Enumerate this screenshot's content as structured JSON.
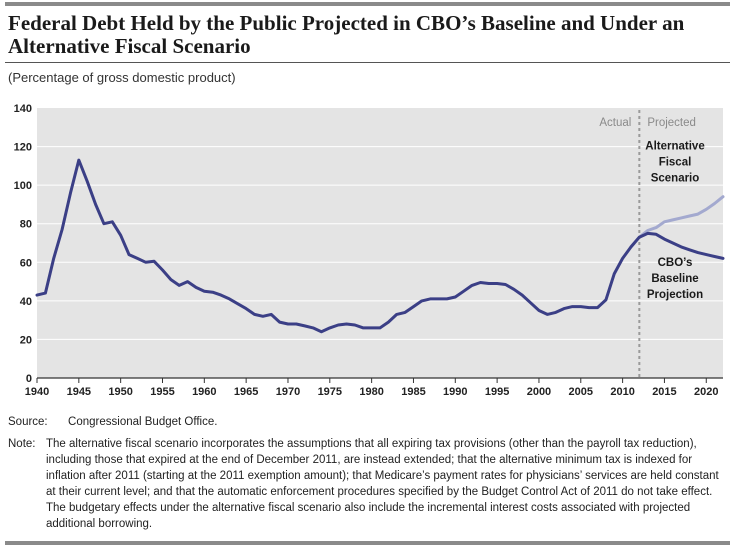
{
  "title": "Federal Debt Held by the Public Projected in CBO’s Baseline and Under an Alternative Fiscal Scenario",
  "subtitle": "(Percentage of gross domestic product)",
  "source_label": "Source:",
  "source_text": "Congressional Budget Office.",
  "note_label": "Note:",
  "note_text": "The alternative fiscal scenario incorporates the assumptions that all expiring tax provisions (other than the payroll tax reduction), including those that expired at the end of December 2011, are instead extended; that the alternative minimum tax is indexed for inflation after 2011 (starting at the 2011 exemption amount); that Medicare’s payment rates for physicians’ services are held constant at their current level; and that the automatic enforcement procedures specified by the Budget Control Act of 2011 do not take effect. The budgetary effects under the alternative fiscal scenario also include the incremental interest costs associated with projected additional borrowing.",
  "colors": {
    "plot_bg": "#e4e4e4",
    "baseline": "#3b3f86",
    "alternative": "#a3a9cf",
    "divider": "#9a9a9a",
    "actual_projected_text": "#8a8a8a"
  },
  "chart_data": {
    "type": "line",
    "title": "",
    "xlabel": "",
    "ylabel": "",
    "xlim": [
      1940,
      2022
    ],
    "ylim": [
      0,
      140
    ],
    "x_ticks": [
      1940,
      1945,
      1950,
      1955,
      1960,
      1965,
      1970,
      1975,
      1980,
      1985,
      1990,
      1995,
      2000,
      2005,
      2010,
      2015,
      2020
    ],
    "y_ticks": [
      0,
      20,
      40,
      60,
      80,
      100,
      120,
      140
    ],
    "grid": "horizontal",
    "divider_year": 2012,
    "region_labels": {
      "actual": "Actual",
      "projected": "Projected"
    },
    "series": [
      {
        "name": "CBO’s Baseline Projection",
        "label_lines": [
          "CBO’s",
          "Baseline",
          "Projection"
        ],
        "x": [
          1940,
          1941,
          1942,
          1943,
          1944,
          1945,
          1946,
          1947,
          1948,
          1949,
          1950,
          1951,
          1952,
          1953,
          1954,
          1955,
          1956,
          1957,
          1958,
          1959,
          1960,
          1961,
          1962,
          1963,
          1964,
          1965,
          1966,
          1967,
          1968,
          1969,
          1970,
          1971,
          1972,
          1973,
          1974,
          1975,
          1976,
          1977,
          1978,
          1979,
          1980,
          1981,
          1982,
          1983,
          1984,
          1985,
          1986,
          1987,
          1988,
          1989,
          1990,
          1991,
          1992,
          1993,
          1994,
          1995,
          1996,
          1997,
          1998,
          1999,
          2000,
          2001,
          2002,
          2003,
          2004,
          2005,
          2006,
          2007,
          2008,
          2009,
          2010,
          2011,
          2012,
          2013,
          2014,
          2015,
          2016,
          2017,
          2018,
          2019,
          2020,
          2021,
          2022
        ],
        "values": [
          43,
          44,
          62,
          77,
          96,
          113,
          102,
          90,
          80,
          81,
          74,
          64,
          62,
          60,
          60.5,
          56,
          51,
          48,
          50,
          47,
          45,
          44.5,
          43,
          41,
          38.5,
          36,
          33,
          32,
          33,
          29,
          28,
          28,
          27,
          26,
          24,
          26,
          27.5,
          28,
          27.5,
          26,
          26,
          26,
          29,
          33,
          34,
          37,
          40,
          41,
          41,
          41,
          42,
          45,
          48,
          49.5,
          49,
          49,
          48.5,
          46,
          43,
          39,
          35,
          33,
          34,
          36,
          37,
          37,
          36.5,
          36.5,
          40.5,
          54,
          62,
          68,
          73,
          75,
          74.5,
          72,
          70,
          68,
          66.5,
          65,
          64,
          63,
          62
        ]
      },
      {
        "name": "Alternative Fiscal Scenario",
        "label_lines": [
          "Alternative",
          "Fiscal",
          "Scenario"
        ],
        "x": [
          2011,
          2012,
          2013,
          2014,
          2015,
          2016,
          2017,
          2018,
          2019,
          2020,
          2021,
          2022
        ],
        "values": [
          68,
          73,
          76.5,
          78,
          81,
          82,
          83,
          84,
          85,
          87.5,
          90.5,
          94
        ]
      }
    ]
  }
}
